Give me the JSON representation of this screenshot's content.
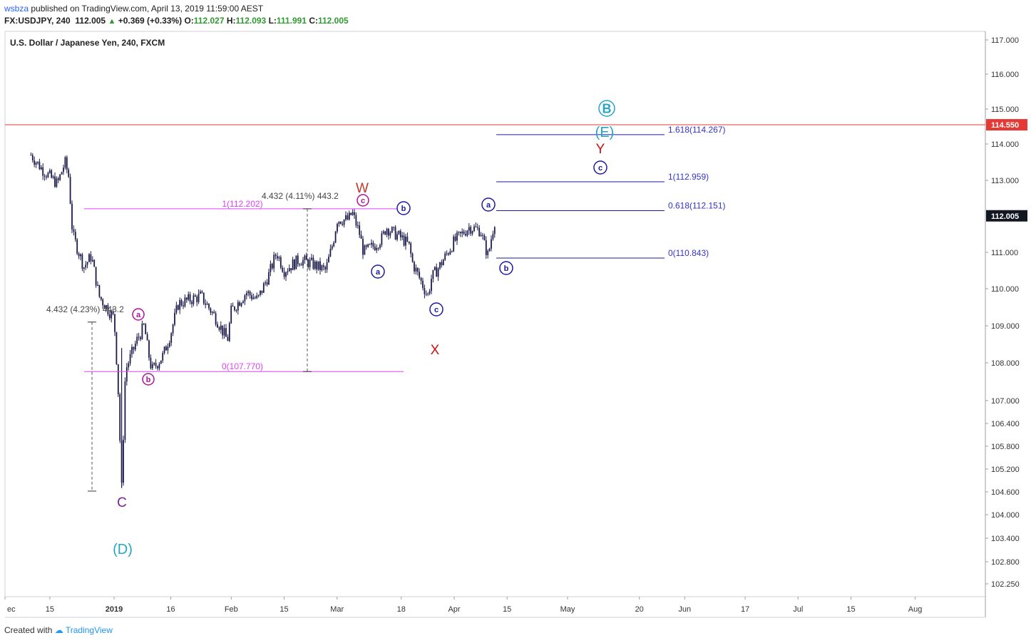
{
  "header": {
    "author": "wsbza",
    "published_text": "published on TradingView.com, April 13, 2019 11:59:00 AEST",
    "symbol": "FX:USDJPY, 240",
    "last": "112.005",
    "change": "+0.369 (+0.33%)",
    "open_label": "O:",
    "open": "112.027",
    "high_label": "H:",
    "high": "112.093",
    "low_label": "L:",
    "low": "111.991",
    "close_label": "C:",
    "close": "112.005"
  },
  "footer": {
    "created_with": "Created with",
    "brand": "TradingView"
  },
  "colors": {
    "candles": "#1a1a4a",
    "pink": "#e040fb",
    "blue": "#1a1aa0",
    "red_line": "#e53935",
    "teal": "#26a6c2",
    "darkred": "#c0392b",
    "purple": "#7b1fa2"
  },
  "chart_data": {
    "type": "candlestick",
    "title": "U.S. Dollar / Japanese Yen, 240, FXCM",
    "x_tick_labels": [
      "ec",
      "15",
      "2019",
      "16",
      "Feb",
      "15",
      "Mar",
      "18",
      "Apr",
      "15",
      "May",
      "20",
      "Jun",
      "17",
      "Jul",
      "15",
      "Aug"
    ],
    "y_tick_labels": [
      "117.000",
      "116.000",
      "115.000",
      "114.000",
      "113.000",
      "111.000",
      "110.000",
      "109.000",
      "108.000",
      "107.000",
      "106.400",
      "105.800",
      "105.200",
      "104.600",
      "104.000",
      "103.400",
      "102.800",
      "102.250"
    ],
    "ylim": [
      102.0,
      117.3
    ],
    "last_price_label": "112.005",
    "horizontal_line_label": "114.550",
    "price_path": [
      [
        "2018-12-10",
        113.7
      ],
      [
        "2018-12-13",
        113.3
      ],
      [
        "2018-12-17",
        112.9
      ],
      [
        "2018-12-19",
        113.5
      ],
      [
        "2018-12-20",
        113.1
      ],
      [
        "2018-12-21",
        111.5
      ],
      [
        "2018-12-24",
        110.6
      ],
      [
        "2018-12-26",
        110.9
      ],
      [
        "2018-12-28",
        109.8
      ],
      [
        "2019-01-01",
        109.2
      ],
      [
        "2019-01-02",
        107.5
      ],
      [
        "2019-01-03",
        104.7
      ],
      [
        "2019-01-04",
        107.8
      ],
      [
        "2019-01-07",
        108.6
      ],
      [
        "2019-01-09",
        109.0
      ],
      [
        "2019-01-10",
        108.3
      ],
      [
        "2019-01-11",
        107.8
      ],
      [
        "2019-01-14",
        108.2
      ],
      [
        "2019-01-16",
        108.8
      ],
      [
        "2019-01-18",
        109.6
      ],
      [
        "2019-01-21",
        109.7
      ],
      [
        "2019-01-24",
        109.8
      ],
      [
        "2019-01-28",
        109.2
      ],
      [
        "2019-01-31",
        108.6
      ],
      [
        "2019-02-01",
        109.4
      ],
      [
        "2019-02-05",
        109.9
      ],
      [
        "2019-02-08",
        109.7
      ],
      [
        "2019-02-11",
        110.4
      ],
      [
        "2019-02-13",
        111.0
      ],
      [
        "2019-02-15",
        110.5
      ],
      [
        "2019-02-19",
        110.8
      ],
      [
        "2019-02-22",
        110.7
      ],
      [
        "2019-02-26",
        110.5
      ],
      [
        "2019-02-28",
        111.3
      ],
      [
        "2019-03-01",
        111.9
      ],
      [
        "2019-03-04",
        111.9
      ],
      [
        "2019-03-05",
        112.1
      ],
      [
        "2019-03-07",
        111.5
      ],
      [
        "2019-03-08",
        111.0
      ],
      [
        "2019-03-11",
        111.2
      ],
      [
        "2019-03-13",
        111.4
      ],
      [
        "2019-03-14",
        111.7
      ],
      [
        "2019-03-15",
        111.6
      ],
      [
        "2019-03-18",
        111.4
      ],
      [
        "2019-03-20",
        111.2
      ],
      [
        "2019-03-21",
        110.7
      ],
      [
        "2019-03-25",
        109.8
      ],
      [
        "2019-03-26",
        110.3
      ],
      [
        "2019-03-28",
        110.6
      ],
      [
        "2019-04-01",
        111.3
      ],
      [
        "2019-04-03",
        111.5
      ],
      [
        "2019-04-05",
        111.7
      ],
      [
        "2019-04-08",
        111.6
      ],
      [
        "2019-04-09",
        111.2
      ],
      [
        "2019-04-10",
        110.9
      ],
      [
        "2019-04-11",
        111.5
      ],
      [
        "2019-04-12",
        112.0
      ]
    ],
    "fib_pink": [
      {
        "label": "1(112.202)",
        "value": 112.202
      },
      {
        "label": "0(107.770)",
        "value": 107.77
      }
    ],
    "fib_blue": [
      {
        "label": "1.618(114.267)",
        "value": 114.267
      },
      {
        "label": "1(112.959)",
        "value": 112.959
      },
      {
        "label": "0.618(112.151)",
        "value": 112.151
      },
      {
        "label": "0(110.843)",
        "value": 110.843
      }
    ],
    "measure_labels": [
      "4.432 (4.23%) 443.2",
      "4.432 (4.11%) 443.2"
    ],
    "wave_labels": [
      "W",
      "X",
      "Y",
      "C",
      "(D)",
      "(E)",
      "B",
      "a",
      "b",
      "c"
    ]
  }
}
